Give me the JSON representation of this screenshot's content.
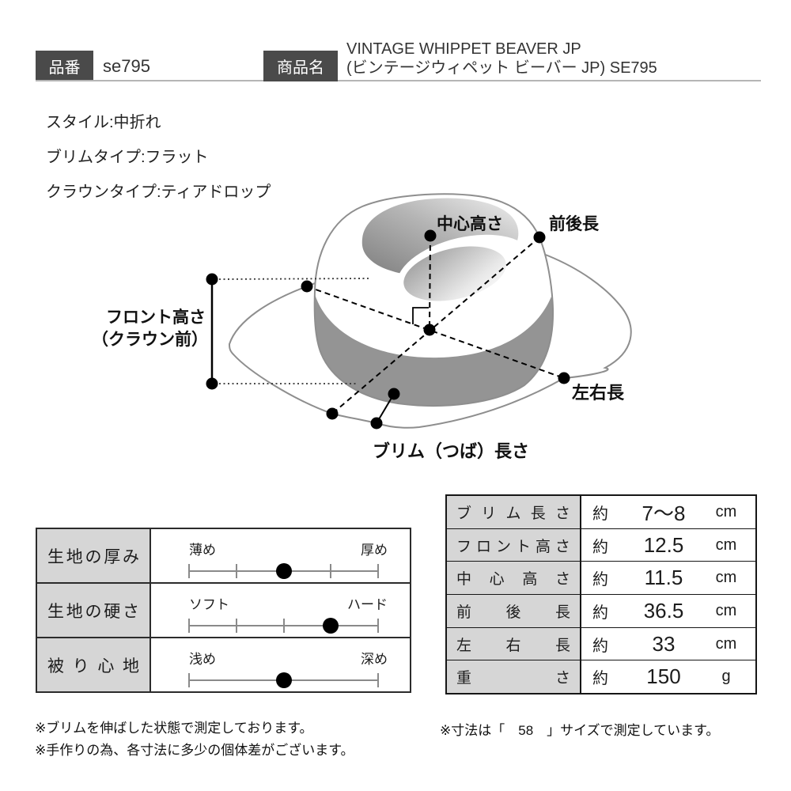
{
  "header": {
    "part_number_label": "品番",
    "part_number_value": "se795",
    "product_name_label": "商品名",
    "product_name_line1": "VINTAGE WHIPPET BEAVER JP",
    "product_name_line2": "(ビンテージウィペット ビーバー JP) SE795"
  },
  "specs": [
    "スタイル:中折れ",
    "ブリムタイプ:フラット",
    "クラウンタイプ:ティアドロップ"
  ],
  "diagram": {
    "labels": {
      "center_height": "中心高さ",
      "front_back_length": "前後長",
      "front_height_line1": "フロント高さ",
      "front_height_line2": "（クラウン前）",
      "left_right_length": "左右長",
      "brim_length": "ブリム（つば）長さ"
    }
  },
  "attribute_table": {
    "rows": [
      {
        "label": "生地の厚み",
        "min": "薄め",
        "max": "厚め",
        "dot_pct": 50,
        "ticks_pct": [
          0,
          25,
          50,
          75,
          100
        ]
      },
      {
        "label": "生地の硬さ",
        "min": "ソフト",
        "max": "ハード",
        "dot_pct": 75,
        "ticks_pct": [
          0,
          25,
          50,
          75,
          100
        ]
      },
      {
        "label": "被り心地",
        "min": "浅め",
        "max": "深め",
        "dot_pct": 50,
        "ticks_pct": [
          0,
          100
        ]
      }
    ]
  },
  "measurement_table": {
    "rows": [
      {
        "label": "ブリム長さ",
        "prefix": "約",
        "value": "7～8",
        "unit": "cm"
      },
      {
        "label": "フロント高さ",
        "prefix": "約",
        "value": "12.5",
        "unit": "cm"
      },
      {
        "label": "中心高さ",
        "prefix": "約",
        "value": "11.5",
        "unit": "cm"
      },
      {
        "label": "前後長",
        "prefix": "約",
        "value": "36.5",
        "unit": "cm"
      },
      {
        "label": "左右長",
        "prefix": "約",
        "value": "33",
        "unit": "cm"
      },
      {
        "label": "重さ",
        "prefix": "約",
        "value": "150",
        "unit": "g"
      }
    ]
  },
  "footnotes": {
    "left_line1": "※ブリムを伸ばした状態で測定しております。",
    "left_line2": "※手作りの為、各寸法に多少の個体差がございます。",
    "right": "※寸法は「　58　」サイズで測定しています。"
  },
  "colors": {
    "label_box_bg": "#4a4a4a",
    "table_header_bg": "#d6d6d6",
    "hat_band": "#949494",
    "hat_outline": "#8e8e8e",
    "rule_line": "#b5b5b5"
  }
}
